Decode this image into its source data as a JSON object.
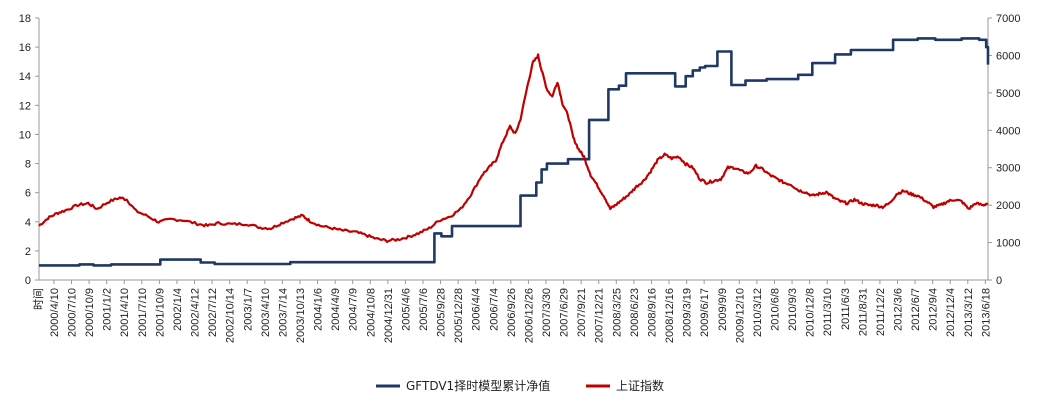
{
  "chart_data": {
    "type": "line",
    "title": "",
    "xlabel": "",
    "ylabel": "",
    "x_axis_title": "时间",
    "y_left_range": [
      0,
      18
    ],
    "y_left_ticks": [
      0,
      2,
      4,
      6,
      8,
      10,
      12,
      14,
      16,
      18
    ],
    "y_right_range": [
      0,
      7000
    ],
    "y_right_ticks": [
      0,
      1000,
      2000,
      3000,
      4000,
      5000,
      6000,
      7000
    ],
    "grid": false,
    "legend_position": "bottom",
    "x_tick_labels": [
      "2000/4/10",
      "2000/7/10",
      "2000/10/9",
      "2001/1/2",
      "2001/4/10",
      "2001/7/10",
      "2001/10/9",
      "2002/1/4",
      "2002/4/12",
      "2002/7/12",
      "2002/10/14",
      "2003/1/7",
      "2003/4/10",
      "2003/7/14",
      "2003/10/13",
      "2004/1/6",
      "2004/4/9",
      "2004/7/9",
      "2004/10/8",
      "2004/12/31",
      "2005/4/6",
      "2005/7/6",
      "2005/9/28",
      "2005/12/28",
      "2006/4/4",
      "2006/7/4",
      "2006/9/26",
      "2006/12/26",
      "2007/3/30",
      "2007/6/29",
      "2007/9/21",
      "2007/12/21",
      "2008/3/25",
      "2008/6/23",
      "2008/9/16",
      "2008/12/16",
      "2009/3/19",
      "2009/6/17",
      "2009/9/9",
      "2009/12/10",
      "2010/3/12",
      "2010/6/8",
      "2010/9/3",
      "2010/12/8",
      "2011/3/10",
      "2011/6/3",
      "2011/8/31",
      "2011/12/2",
      "2012/3/6",
      "2012/6/7",
      "2012/9/4",
      "2012/12/4",
      "2013/3/12",
      "2013/6/18"
    ],
    "series": [
      {
        "name": "GFTDV1择时模型累计净值",
        "axis": "left",
        "color": "#1f3864",
        "step": true,
        "points": [
          [
            0,
            1.0
          ],
          [
            2.3,
            1.07
          ],
          [
            3.1,
            1.0
          ],
          [
            4.1,
            1.07
          ],
          [
            6.9,
            1.4
          ],
          [
            9.2,
            1.2
          ],
          [
            10.0,
            1.1
          ],
          [
            14.3,
            1.22
          ],
          [
            22.5,
            3.2
          ],
          [
            22.9,
            3.0
          ],
          [
            23.5,
            3.7
          ],
          [
            27.4,
            5.8
          ],
          [
            28.3,
            6.7
          ],
          [
            28.6,
            7.6
          ],
          [
            28.9,
            8.0
          ],
          [
            30.1,
            8.3
          ],
          [
            31.3,
            11.0
          ],
          [
            32.4,
            13.1
          ],
          [
            33.0,
            13.35
          ],
          [
            33.4,
            14.2
          ],
          [
            36.2,
            13.3
          ],
          [
            36.8,
            14.0
          ],
          [
            37.2,
            14.4
          ],
          [
            37.6,
            14.6
          ],
          [
            37.9,
            14.7
          ],
          [
            38.6,
            15.7
          ],
          [
            39.0,
            15.7
          ],
          [
            39.4,
            13.4
          ],
          [
            39.9,
            13.4
          ],
          [
            40.2,
            13.7
          ],
          [
            41.4,
            13.8
          ],
          [
            42.5,
            13.8
          ],
          [
            43.2,
            14.1
          ],
          [
            44.0,
            14.9
          ],
          [
            45.3,
            15.5
          ],
          [
            46.2,
            15.8
          ],
          [
            48.6,
            16.5
          ],
          [
            50.0,
            16.6
          ],
          [
            51.0,
            16.5
          ],
          [
            52.5,
            16.6
          ],
          [
            53.5,
            16.5
          ],
          [
            53.9,
            16.0
          ],
          [
            54.0,
            14.8
          ]
        ]
      },
      {
        "name": "上证指数",
        "axis": "right",
        "color": "#c00000",
        "step": false,
        "points": [
          [
            0,
            1450
          ],
          [
            0.5,
            1650
          ],
          [
            1,
            1780
          ],
          [
            1.5,
            1860
          ],
          [
            2.2,
            2000
          ],
          [
            2.8,
            2050
          ],
          [
            3.3,
            1900
          ],
          [
            4.0,
            2100
          ],
          [
            4.6,
            2200
          ],
          [
            5.0,
            2150
          ],
          [
            5.5,
            1850
          ],
          [
            6.2,
            1700
          ],
          [
            6.8,
            1550
          ],
          [
            7.5,
            1620
          ],
          [
            8.2,
            1600
          ],
          [
            9.0,
            1500
          ],
          [
            9.6,
            1450
          ],
          [
            10.2,
            1520
          ],
          [
            11.0,
            1490
          ],
          [
            11.8,
            1500
          ],
          [
            12.6,
            1400
          ],
          [
            13.2,
            1380
          ],
          [
            13.8,
            1520
          ],
          [
            14.5,
            1650
          ],
          [
            15.0,
            1720
          ],
          [
            15.4,
            1580
          ],
          [
            16.0,
            1450
          ],
          [
            16.7,
            1380
          ],
          [
            17.3,
            1320
          ],
          [
            18.0,
            1280
          ],
          [
            18.6,
            1200
          ],
          [
            19.2,
            1100
          ],
          [
            19.8,
            1050
          ],
          [
            20.4,
            1080
          ],
          [
            21.0,
            1150
          ],
          [
            21.6,
            1250
          ],
          [
            22.2,
            1380
          ],
          [
            22.8,
            1600
          ],
          [
            23.4,
            1700
          ],
          [
            24.0,
            1900
          ],
          [
            24.6,
            2300
          ],
          [
            25.2,
            2800
          ],
          [
            25.6,
            3000
          ],
          [
            26.0,
            3200
          ],
          [
            26.4,
            3700
          ],
          [
            26.8,
            4100
          ],
          [
            27.1,
            3900
          ],
          [
            27.4,
            4300
          ],
          [
            27.8,
            5200
          ],
          [
            28.1,
            5800
          ],
          [
            28.4,
            6000
          ],
          [
            28.6,
            5600
          ],
          [
            28.9,
            5100
          ],
          [
            29.2,
            4900
          ],
          [
            29.5,
            5300
          ],
          [
            29.8,
            4700
          ],
          [
            30.1,
            4400
          ],
          [
            30.4,
            3800
          ],
          [
            30.7,
            3500
          ],
          [
            31.0,
            3300
          ],
          [
            31.4,
            2800
          ],
          [
            31.8,
            2500
          ],
          [
            32.2,
            2200
          ],
          [
            32.5,
            1900
          ],
          [
            32.8,
            2000
          ],
          [
            33.2,
            2150
          ],
          [
            33.6,
            2300
          ],
          [
            34.0,
            2500
          ],
          [
            34.4,
            2650
          ],
          [
            34.8,
            2900
          ],
          [
            35.2,
            3200
          ],
          [
            35.6,
            3350
          ],
          [
            36.0,
            3250
          ],
          [
            36.4,
            3300
          ],
          [
            36.8,
            3100
          ],
          [
            37.2,
            3000
          ],
          [
            37.6,
            2700
          ],
          [
            38.0,
            2600
          ],
          [
            38.4,
            2650
          ],
          [
            38.8,
            2700
          ],
          [
            39.2,
            3000
          ],
          [
            39.6,
            3000
          ],
          [
            40.0,
            2900
          ],
          [
            40.4,
            2850
          ],
          [
            40.8,
            3050
          ],
          [
            41.2,
            2950
          ],
          [
            41.6,
            2800
          ],
          [
            42.0,
            2700
          ],
          [
            42.4,
            2600
          ],
          [
            42.8,
            2550
          ],
          [
            43.2,
            2400
          ],
          [
            43.6,
            2350
          ],
          [
            44.0,
            2250
          ],
          [
            44.4,
            2300
          ],
          [
            44.8,
            2350
          ],
          [
            45.2,
            2200
          ],
          [
            45.6,
            2100
          ],
          [
            46.0,
            2050
          ],
          [
            46.4,
            2150
          ],
          [
            46.8,
            2050
          ],
          [
            47.2,
            2000
          ],
          [
            47.6,
            2000
          ],
          [
            48.0,
            1950
          ],
          [
            48.4,
            2050
          ],
          [
            48.8,
            2300
          ],
          [
            49.2,
            2380
          ],
          [
            49.6,
            2300
          ],
          [
            50.0,
            2250
          ],
          [
            50.5,
            2100
          ],
          [
            50.9,
            1950
          ],
          [
            51.3,
            2000
          ],
          [
            51.7,
            2100
          ],
          [
            52.1,
            2150
          ],
          [
            52.5,
            2100
          ],
          [
            52.9,
            1900
          ],
          [
            53.3,
            2050
          ],
          [
            53.7,
            2000
          ],
          [
            54.0,
            2050
          ]
        ]
      }
    ]
  }
}
